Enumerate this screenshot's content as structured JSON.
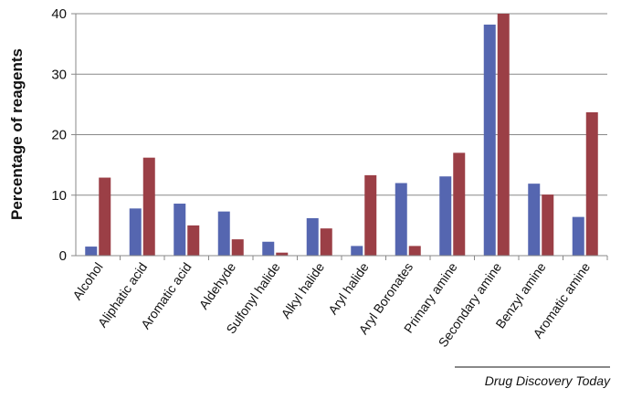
{
  "chart_data": {
    "type": "bar",
    "ylabel": "Percentage of reagents",
    "xlabel": "",
    "title": "",
    "ylim": [
      0,
      40
    ],
    "yticks": [
      0,
      10,
      20,
      30,
      40
    ],
    "grid": "horizontal",
    "legend": "none",
    "categories": [
      "Alcohol",
      "Aliphatic acid",
      "Aromatic acid",
      "Aldehyde",
      "Sulfonyl halide",
      "Alkyl halide",
      "Aryl halide",
      "Aryl Boronates",
      "Primary amine",
      "Secondary amine",
      "Benzyl amine",
      "Aromatic amine"
    ],
    "series": [
      {
        "color": "#5566b0",
        "values": [
          1.5,
          7.8,
          8.6,
          7.3,
          2.3,
          6.2,
          1.6,
          12.0,
          13.1,
          38.2,
          11.9,
          6.4
        ]
      },
      {
        "color": "#9b3f46",
        "values": [
          12.9,
          16.2,
          5.0,
          2.7,
          0.5,
          4.5,
          13.3,
          1.6,
          17.0,
          40.0,
          10.1,
          23.7
        ]
      }
    ],
    "source": "Drug Discovery Today"
  }
}
